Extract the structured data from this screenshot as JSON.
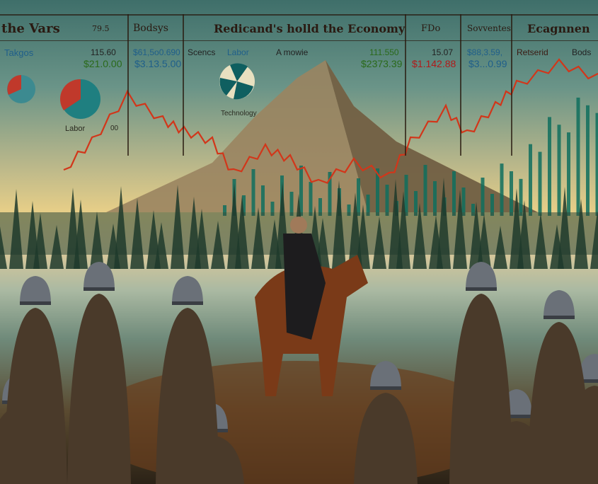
{
  "header": {
    "title_left": "the Vars",
    "num_left": "79.5",
    "col2": "Bodsys",
    "title_center": "Redicand's holld the Economy",
    "col5": "FDo",
    "col6": "Sovventes",
    "col7": "Ecagnnen"
  },
  "row": {
    "label1": "Takgos",
    "v1a": "115.60",
    "v1b": "$21.0.00",
    "v2a": "$61,5o0.690",
    "v2b": "$3.13.5.00",
    "label3a": "Scencs",
    "label3b": "Labor",
    "label3c": "A mowie",
    "v4a": "111.550",
    "v4b": "$2373.39",
    "v5a": "15.07",
    "v5b": "$1.142.88",
    "v6a": "$88,3.59,",
    "v6b": "$3...0.99",
    "label7a": "Retserid",
    "label7b": "Bods"
  },
  "labels": {
    "labor": "Labor",
    "zero": "00",
    "technology": "Technology"
  },
  "colors": {
    "line": "#d2361a",
    "bars": "#0f6e5e",
    "text_green": "#2a6a1a",
    "text_blue": "#1f5f8a",
    "text_red": "#b01a1a"
  }
}
